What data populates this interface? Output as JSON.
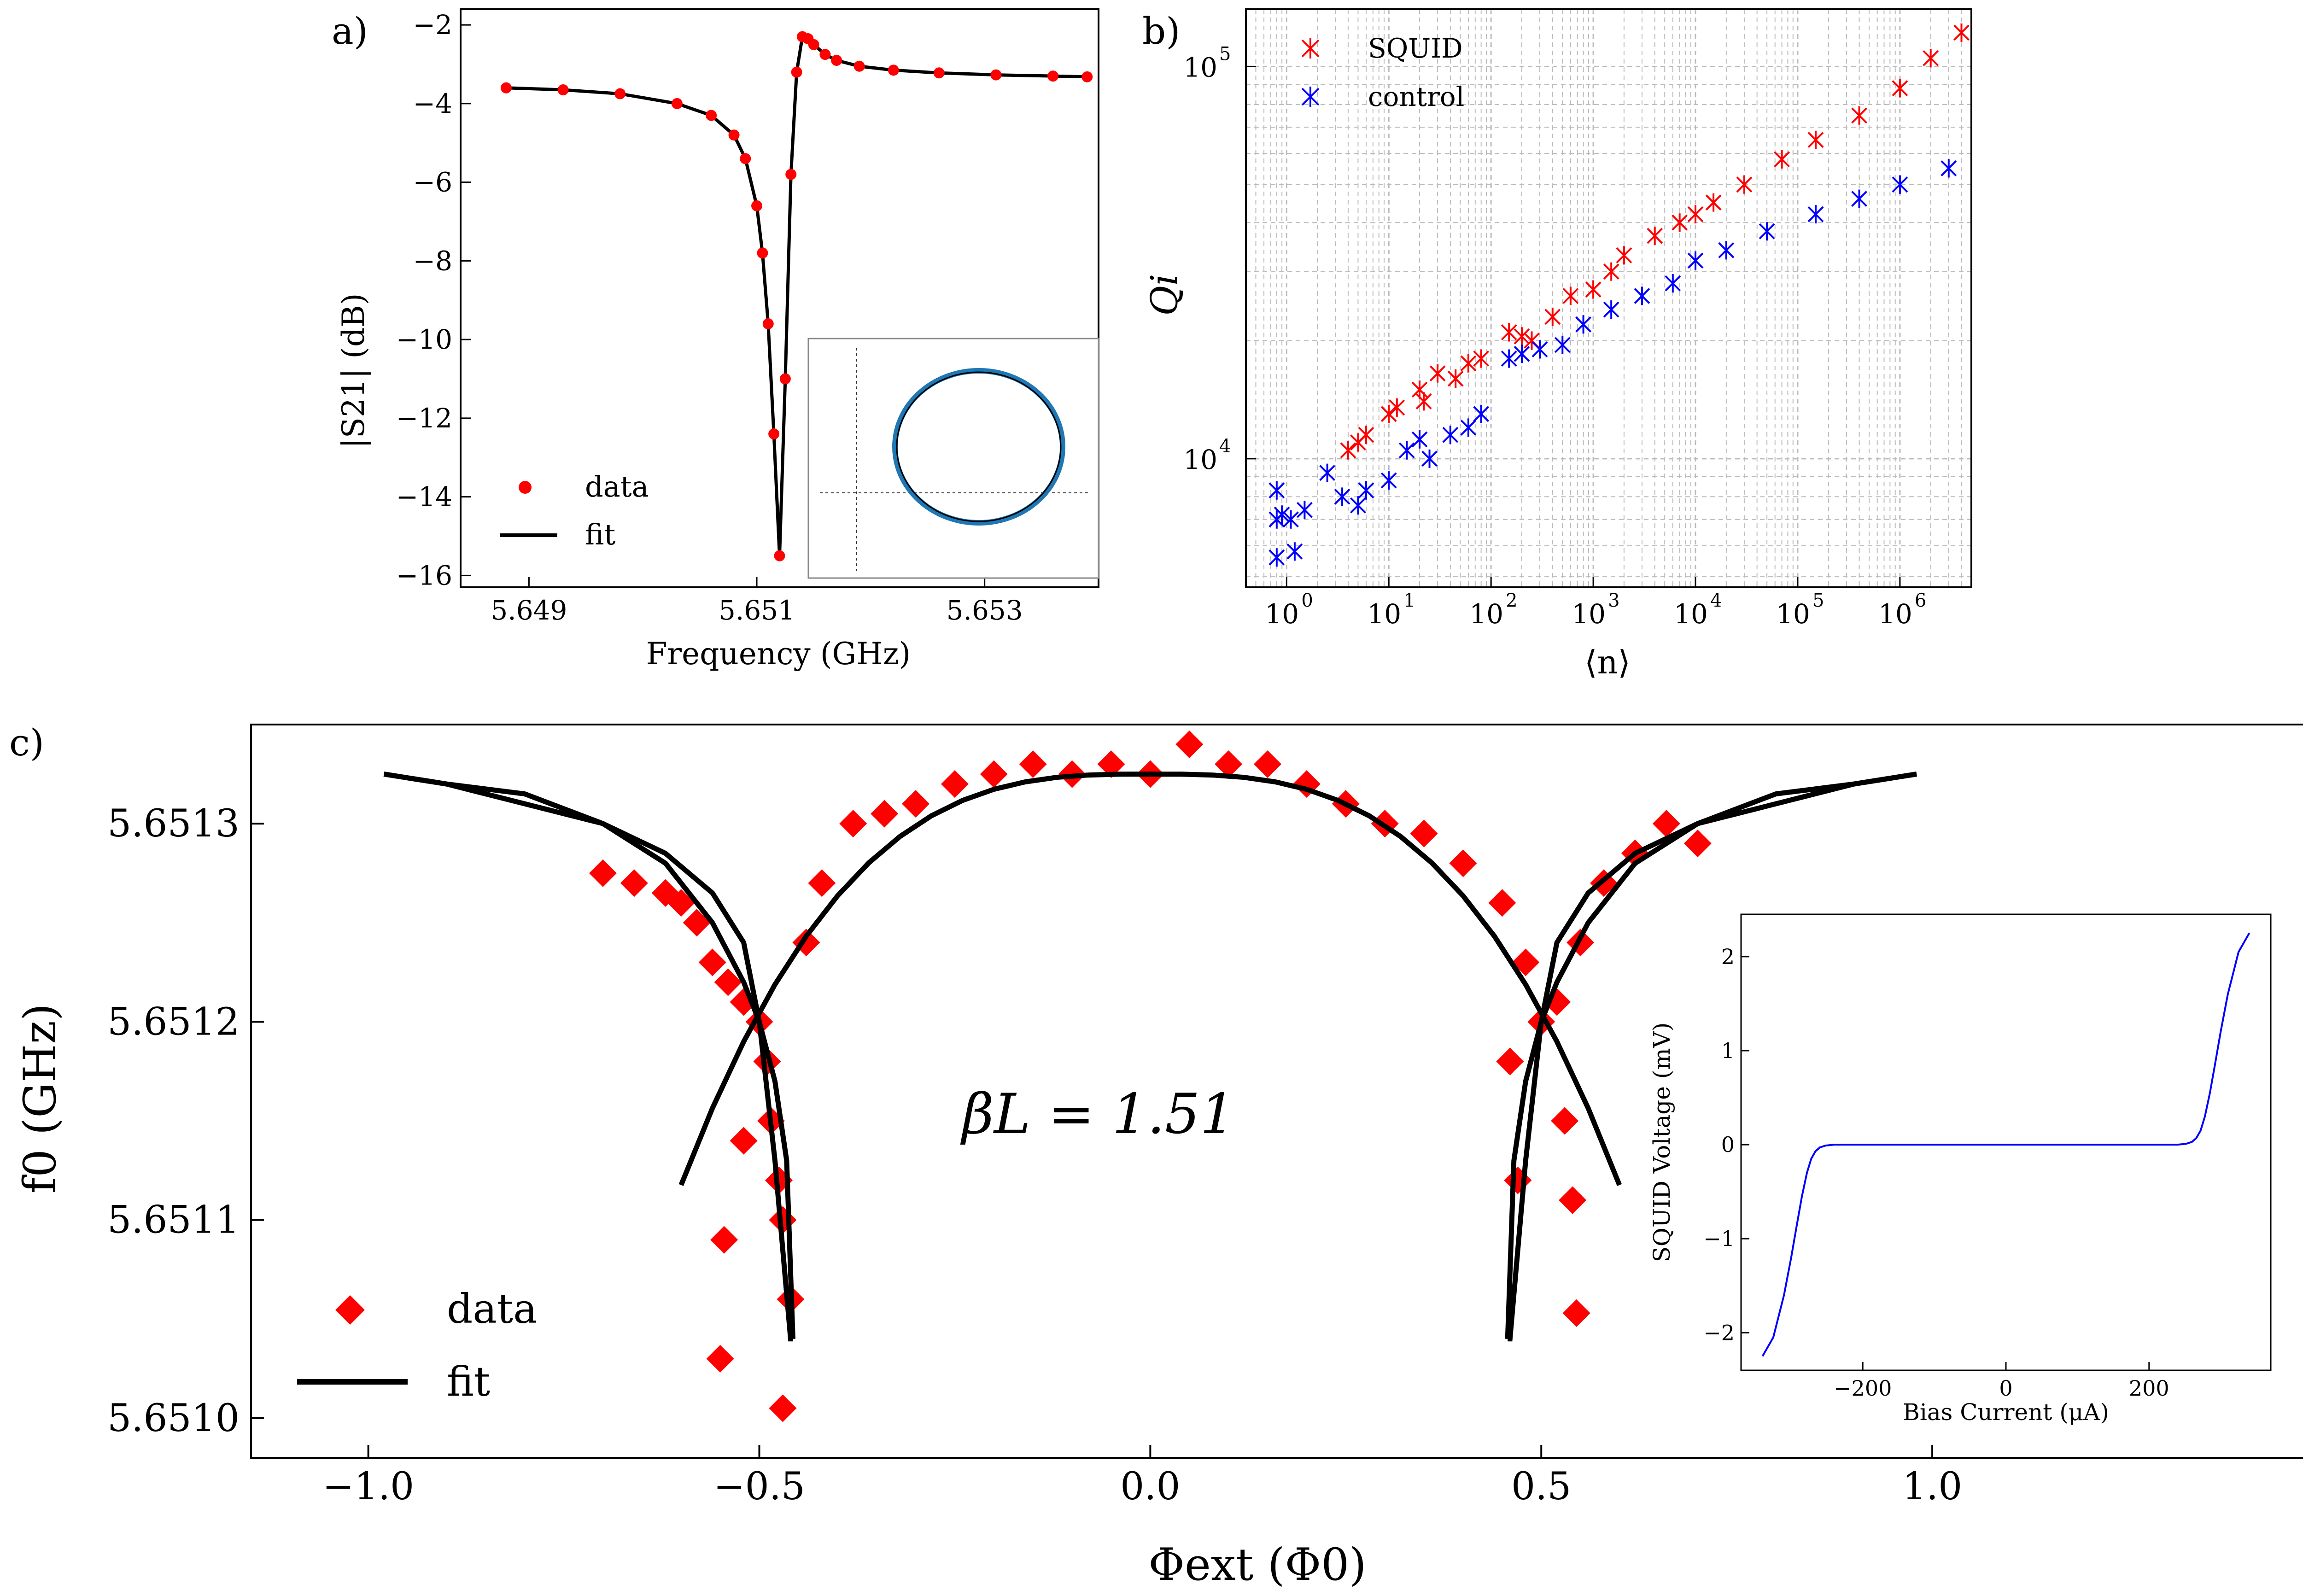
{
  "panels": {
    "a_label": "a)",
    "b_label": "b)",
    "c_label": "c)"
  },
  "chart_data": [
    {
      "panel": "a",
      "type": "line",
      "xlabel": "Frequency (GHz)",
      "ylabel": "|S21| (dB)",
      "xlim": [
        5.6484,
        5.654
      ],
      "ylim": [
        -16.3,
        -1.6
      ],
      "xticks": [
        5.649,
        5.651,
        5.653
      ],
      "xtick_labels": [
        "5.649",
        "5.651",
        "5.653"
      ],
      "yticks": [
        -16,
        -14,
        -12,
        -10,
        -8,
        -6,
        -4,
        -2
      ],
      "ytick_labels": [
        "−16",
        "−14",
        "−12",
        "−10",
        "−8",
        "−6",
        "−4",
        "−2"
      ],
      "legend": {
        "position": "lower-left",
        "entries": [
          "data",
          "fit"
        ]
      },
      "series": [
        {
          "name": "data",
          "color": "#ff0000",
          "marker": "circle",
          "x": [
            5.6488,
            5.6493,
            5.6498,
            5.6503,
            5.6506,
            5.6508,
            5.6509,
            5.651,
            5.65105,
            5.6511,
            5.65115,
            5.6512,
            5.65125,
            5.6513,
            5.65135,
            5.6514,
            5.65145,
            5.6515,
            5.6516,
            5.6517,
            5.6519,
            5.6522,
            5.6526,
            5.6531,
            5.6536,
            5.6539
          ],
          "y": [
            -3.6,
            -3.65,
            -3.75,
            -4.0,
            -4.3,
            -4.8,
            -5.4,
            -6.6,
            -7.8,
            -9.6,
            -12.4,
            -15.5,
            -11.0,
            -5.8,
            -3.2,
            -2.3,
            -2.35,
            -2.5,
            -2.75,
            -2.9,
            -3.05,
            -3.15,
            -3.22,
            -3.27,
            -3.3,
            -3.32
          ]
        },
        {
          "name": "fit",
          "color": "#000000",
          "x": [
            5.6488,
            5.6493,
            5.6498,
            5.6503,
            5.6506,
            5.6508,
            5.6509,
            5.651,
            5.65105,
            5.6511,
            5.65115,
            5.6512,
            5.65125,
            5.6513,
            5.65135,
            5.6514,
            5.65145,
            5.6515,
            5.6516,
            5.6517,
            5.6519,
            5.6522,
            5.6526,
            5.6531,
            5.6536,
            5.6539
          ],
          "y": [
            -3.6,
            -3.65,
            -3.75,
            -4.0,
            -4.3,
            -4.8,
            -5.4,
            -6.6,
            -7.8,
            -9.6,
            -12.4,
            -15.5,
            -11.0,
            -5.8,
            -3.2,
            -2.3,
            -2.35,
            -2.5,
            -2.75,
            -2.9,
            -3.05,
            -3.15,
            -3.22,
            -3.27,
            -3.3,
            -3.32
          ]
        }
      ],
      "inset": {
        "type": "scatter",
        "description_only": false,
        "shape": "resonance circle",
        "data_color": "#1f77b4",
        "fit_color": "#000000"
      }
    },
    {
      "panel": "b",
      "type": "scatter",
      "xlabel": "⟨n⟩",
      "ylabel": "Qi",
      "xscale": "log",
      "yscale": "log",
      "xlim": [
        0.4,
        5000000
      ],
      "ylim": [
        4700,
        140000
      ],
      "xtick_exponents": [
        0,
        1,
        2,
        3,
        4,
        5,
        6
      ],
      "ytick_exponents": [
        4,
        5
      ],
      "grid": true,
      "legend": {
        "position": "top-left",
        "entries": [
          "SQUID",
          "control"
        ]
      },
      "series": [
        {
          "name": "SQUID",
          "color": "#ff0000",
          "marker": "x",
          "x": [
            4,
            5,
            6,
            10,
            12,
            20,
            22,
            30,
            45,
            60,
            80,
            150,
            200,
            250,
            400,
            600,
            1000,
            1500,
            2000,
            4000,
            7000,
            10000,
            15000,
            30000,
            70000,
            150000,
            400000,
            1000000,
            2000000,
            4000000
          ],
          "y": [
            10500,
            11000,
            11500,
            13000,
            13500,
            15000,
            14000,
            16500,
            16000,
            17500,
            18000,
            21000,
            20500,
            20000,
            23000,
            26000,
            27000,
            30000,
            33000,
            37000,
            40000,
            42000,
            45000,
            50000,
            58000,
            65000,
            75000,
            88000,
            105000,
            122000
          ]
        },
        {
          "name": "control",
          "color": "#0000ff",
          "marker": "x",
          "x": [
            0.8,
            0.8,
            0.8,
            0.9,
            1.1,
            1.2,
            1.5,
            2.5,
            3.5,
            5,
            6,
            10,
            15,
            20,
            25,
            40,
            60,
            80,
            150,
            200,
            300,
            500,
            800,
            1500,
            3000,
            6000,
            10000,
            20000,
            50000,
            150000,
            400000,
            1000000,
            3000000
          ],
          "y": [
            8300,
            7000,
            5600,
            7200,
            7000,
            5800,
            7400,
            9200,
            8000,
            7600,
            8300,
            8800,
            10500,
            11200,
            10000,
            11500,
            12000,
            13000,
            18000,
            18500,
            19000,
            19500,
            22000,
            24000,
            26000,
            28000,
            32000,
            34000,
            38000,
            42000,
            46000,
            50000,
            55000
          ]
        }
      ]
    },
    {
      "panel": "c",
      "type": "scatter",
      "xlabel": "Φext (Φ0)",
      "ylabel": "f0 (GHz)",
      "xlim": [
        -1.15,
        1.48
      ],
      "ylim": [
        5.65098,
        5.65135
      ],
      "xticks": [
        -1.0,
        -0.5,
        0.0,
        0.5,
        1.0
      ],
      "xtick_labels": [
        "−1.0",
        "−0.5",
        "0.0",
        "0.5",
        "1.0"
      ],
      "yticks": [
        5.651,
        5.6511,
        5.6512,
        5.6513
      ],
      "ytick_labels": [
        "5.6510",
        "5.6511",
        "5.6512",
        "5.6513"
      ],
      "annotation": "βL = 1.51",
      "legend": {
        "position": "lower-left",
        "entries": [
          "data",
          "fit"
        ]
      },
      "series": [
        {
          "name": "data",
          "color": "#ff0000",
          "marker": "diamond",
          "x": [
            -0.7,
            -0.66,
            -0.62,
            -0.6,
            -0.58,
            -0.56,
            -0.54,
            -0.52,
            -0.5,
            -0.49,
            -0.485,
            -0.475,
            -0.47,
            -0.46,
            -0.55,
            -0.545,
            -0.52,
            -0.47,
            -0.44,
            -0.42,
            -0.38,
            -0.34,
            -0.3,
            -0.25,
            -0.2,
            -0.15,
            -0.1,
            -0.05,
            0.0,
            0.05,
            0.1,
            0.15,
            0.2,
            0.25,
            0.3,
            0.35,
            0.4,
            0.45,
            0.48,
            0.5,
            0.52,
            0.55,
            0.58,
            0.62,
            0.66,
            0.7,
            0.46,
            0.47,
            0.53,
            0.54,
            0.545
          ],
          "y": [
            5.651275,
            5.65127,
            5.651265,
            5.65126,
            5.65125,
            5.65123,
            5.65122,
            5.65121,
            5.6512,
            5.65118,
            5.65115,
            5.65112,
            5.6511,
            5.65106,
            5.65103,
            5.65109,
            5.65114,
            5.651005,
            5.65124,
            5.65127,
            5.6513,
            5.651305,
            5.65131,
            5.65132,
            5.651325,
            5.65133,
            5.651325,
            5.65133,
            5.651325,
            5.65134,
            5.65133,
            5.65133,
            5.65132,
            5.65131,
            5.6513,
            5.651295,
            5.65128,
            5.65126,
            5.65123,
            5.6512,
            5.65121,
            5.65124,
            5.65127,
            5.651285,
            5.6513,
            5.65129,
            5.65118,
            5.65112,
            5.65115,
            5.65111,
            5.651053
          ]
        },
        {
          "name": "fit",
          "color": "#000000",
          "x": [
            -0.98,
            -0.9,
            -0.8,
            -0.7,
            -0.62,
            -0.56,
            -0.52,
            -0.5,
            -0.48,
            -0.465,
            -0.457,
            -0.457,
            -0.46,
            -0.48,
            -0.5,
            -0.52,
            -0.56,
            -0.62,
            -0.7,
            -0.8,
            -0.9,
            -0.98
          ],
          "y": [
            5.651325,
            5.65132,
            5.65131,
            5.6513,
            5.65128,
            5.65125,
            5.65122,
            5.6512,
            5.65117,
            5.65113,
            5.65104,
            5.65104,
            5.65104,
            5.65113,
            5.6512,
            5.65124,
            5.651265,
            5.651285,
            5.6513,
            5.651315,
            5.65132,
            5.651325
          ]
        }
      ],
      "inset": {
        "type": "line",
        "xlabel": "Bias Current (μA)",
        "ylabel": "SQUID Voltage (mV)",
        "xlim": [
          -370,
          370
        ],
        "ylim": [
          -2.4,
          2.45
        ],
        "xticks": [
          -200,
          0,
          200
        ],
        "xtick_labels": [
          "−200",
          "0",
          "200"
        ],
        "yticks": [
          -2,
          -1,
          0,
          1,
          2
        ],
        "ytick_labels": [
          "−2",
          "−1",
          "0",
          "1",
          "2"
        ],
        "series": [
          {
            "color": "#0000ff",
            "x": [
              -340,
              -325,
              -310,
              -300,
              -292,
              -285,
              -278,
              -272,
              -266,
              -260,
              -252,
              -240,
              -220,
              -150,
              0,
              150,
              220,
              240,
              252,
              260,
              266,
              272,
              278,
              285,
              292,
              300,
              310,
              325,
              340
            ],
            "y": [
              -2.25,
              -2.05,
              -1.6,
              -1.2,
              -0.85,
              -0.55,
              -0.3,
              -0.15,
              -0.07,
              -0.03,
              -0.01,
              0.0,
              0.0,
              0.0,
              0.0,
              0.0,
              0.0,
              0.0,
              0.01,
              0.03,
              0.07,
              0.15,
              0.3,
              0.55,
              0.85,
              1.2,
              1.6,
              2.05,
              2.25
            ]
          }
        ]
      }
    }
  ]
}
